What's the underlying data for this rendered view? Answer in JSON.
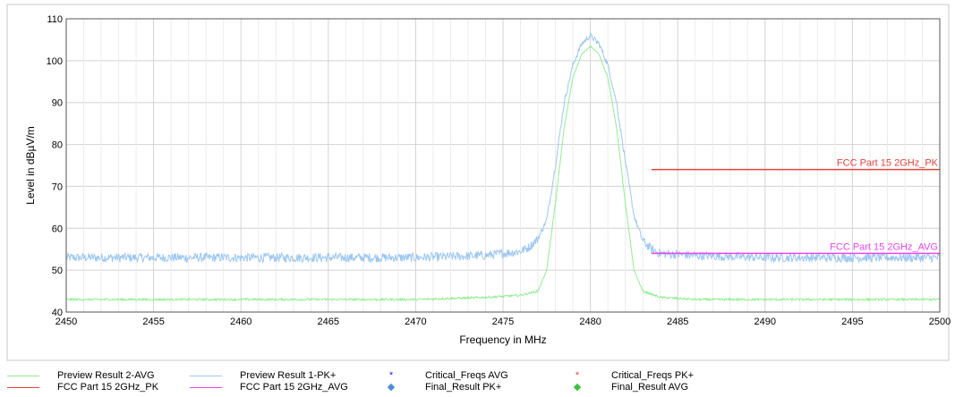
{
  "chart_data": {
    "type": "line",
    "xlabel": "Frequency in MHz",
    "ylabel": "Level in dBµV/m",
    "xlim": [
      2450,
      2500
    ],
    "ylim": [
      40,
      110
    ],
    "x_ticks": [
      2450,
      2455,
      2460,
      2465,
      2470,
      2475,
      2480,
      2485,
      2490,
      2495,
      2500
    ],
    "y_ticks": [
      40,
      50,
      60,
      70,
      80,
      90,
      100,
      110
    ],
    "grid": true,
    "legend_position": "bottom",
    "series": [
      {
        "name": "Preview Result 1-PK+",
        "color": "#9cc7f2",
        "x": [
          2450,
          2455,
          2460,
          2465,
          2470,
          2474,
          2476,
          2476.5,
          2477,
          2477.5,
          2478,
          2478.5,
          2479,
          2479.5,
          2480,
          2480.5,
          2481,
          2481.5,
          2482,
          2482.5,
          2483,
          2483.5,
          2484,
          2486,
          2490,
          2495,
          2500
        ],
        "y": [
          53,
          53,
          53,
          53,
          53,
          53.5,
          54.5,
          55.5,
          57.5,
          62,
          75,
          90,
          99,
          104,
          106,
          104,
          99,
          90,
          76,
          63,
          57,
          55,
          54,
          53.5,
          53,
          53,
          53
        ]
      },
      {
        "name": "Preview Result 2-AVG",
        "color": "#90ee90",
        "x": [
          2450,
          2455,
          2460,
          2465,
          2470,
          2474,
          2476,
          2477,
          2477.5,
          2478,
          2478.5,
          2479,
          2479.5,
          2480,
          2480.5,
          2481,
          2481.5,
          2482,
          2482.5,
          2483,
          2484,
          2486,
          2490,
          2495,
          2500
        ],
        "y": [
          43,
          43,
          43,
          43,
          43,
          43.5,
          44,
          45,
          50,
          66,
          84,
          96,
          101.5,
          103.5,
          101.5,
          96,
          84,
          66,
          50,
          45,
          43.5,
          43,
          43,
          43,
          43
        ]
      }
    ],
    "limit_lines": [
      {
        "name": "FCC Part 15 2GHz_PK",
        "label": "FCC Part 15 2GHz_PK",
        "color": "#e8433a",
        "x": [
          2483.5,
          2500
        ],
        "y": 74
      },
      {
        "name": "FCC Part 15 2GHz_AVG",
        "label": "FCC Part 15 2GHz_AVG",
        "color": "#ee44ee",
        "x": [
          2483.5,
          2500
        ],
        "y": 54
      }
    ]
  },
  "legend": {
    "items": [
      {
        "label": "Preview Result 2-AVG",
        "kind": "line",
        "color": "#90ee90"
      },
      {
        "label": "Preview Result 1-PK+",
        "kind": "line",
        "color": "#9cc7f2"
      },
      {
        "label": "Critical_Freqs AVG",
        "kind": "marker",
        "marker": "*",
        "color": "#1f1fd6"
      },
      {
        "label": "Critical_Freqs PK+",
        "kind": "marker",
        "marker": "*",
        "color": "#e8433a"
      },
      {
        "label": "FCC Part 15 2GHz_PK",
        "kind": "line",
        "color": "#e8433a"
      },
      {
        "label": "FCC Part 15 2GHz_AVG",
        "kind": "line",
        "color": "#ee44ee"
      },
      {
        "label": "Final_Result PK+",
        "kind": "marker",
        "marker": "◆",
        "color": "#4a90d9"
      },
      {
        "label": "Final_Result AVG",
        "kind": "marker",
        "marker": "◆",
        "color": "#3cc43c"
      }
    ]
  }
}
